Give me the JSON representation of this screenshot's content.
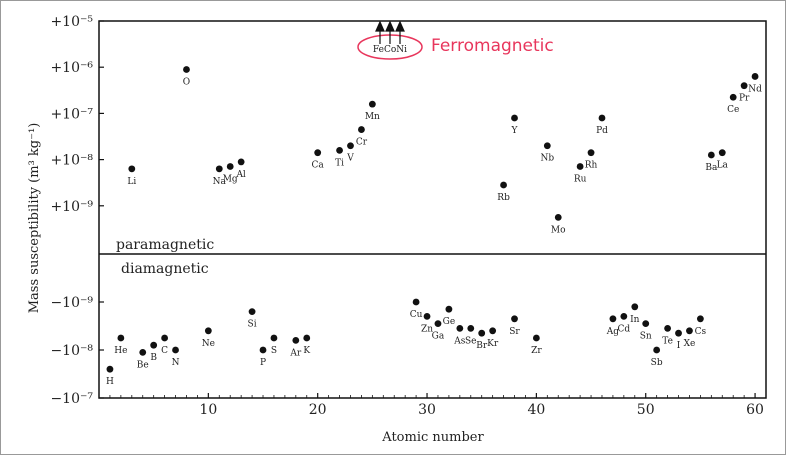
{
  "chart_data": {
    "type": "scatter",
    "xlabel": "Atomic number",
    "ylabel": "Mass susceptibility (m³ kg⁻¹)",
    "x_ticks": [
      10,
      20,
      30,
      40,
      50,
      60
    ],
    "xlim": [
      0,
      61
    ],
    "scale": "log (magnitude)",
    "grid": false,
    "colors": {
      "marker": "#111111",
      "annotation": "#e8365c"
    },
    "annotation": {
      "text": "Ferromagnetic",
      "elements": "FeCoNi"
    },
    "paramagnetic": {
      "label": "paramagnetic",
      "ylim_exp": [
        -9.8,
        -5
      ],
      "y_ticks": [
        "+10⁻⁵",
        "+10⁻⁶",
        "+10⁻⁷",
        "+10⁻⁸",
        "+10⁻⁹"
      ],
      "y_tick_exp": [
        -5,
        -6,
        -7,
        -8,
        -9
      ],
      "points": [
        {
          "z": 3,
          "el": "Li",
          "exp": -8.2
        },
        {
          "z": 8,
          "el": "O",
          "exp": -6.05
        },
        {
          "z": 11,
          "el": "Na",
          "exp": -8.2
        },
        {
          "z": 12,
          "el": "Mg",
          "exp": -8.15
        },
        {
          "z": 13,
          "el": "Al",
          "exp": -8.05
        },
        {
          "z": 20,
          "el": "Ca",
          "exp": -7.85
        },
        {
          "z": 22,
          "el": "Ti",
          "exp": -7.8
        },
        {
          "z": 23,
          "el": "V",
          "exp": -7.7
        },
        {
          "z": 24,
          "el": "Cr",
          "exp": -7.35
        },
        {
          "z": 25,
          "el": "Mn",
          "exp": -6.8
        },
        {
          "z": 37,
          "el": "Rb",
          "exp": -8.55
        },
        {
          "z": 38,
          "el": "Y",
          "exp": -7.1
        },
        {
          "z": 41,
          "el": "Nb",
          "exp": -7.7
        },
        {
          "z": 42,
          "el": "Mo",
          "exp": -9.25
        },
        {
          "z": 44,
          "el": "Ru",
          "exp": -8.15
        },
        {
          "z": 45,
          "el": "Rh",
          "exp": -7.85
        },
        {
          "z": 46,
          "el": "Pd",
          "exp": -7.1
        },
        {
          "z": 56,
          "el": "Ba",
          "exp": -7.9
        },
        {
          "z": 57,
          "el": "La",
          "exp": -7.85
        },
        {
          "z": 58,
          "el": "Ce",
          "exp": -6.65
        },
        {
          "z": 59,
          "el": "Pr",
          "exp": -6.4
        },
        {
          "z": 60,
          "el": "Nd",
          "exp": -6.2
        }
      ]
    },
    "diamagnetic": {
      "label": "diamagnetic",
      "ylim_exp": [
        -8.3,
        -10.9
      ],
      "y_ticks": [
        "−10⁻⁹",
        "−10⁻⁸",
        "−10⁻⁷"
      ],
      "y_tick_exp": [
        -9,
        -8,
        -7
      ],
      "points": [
        {
          "z": 1,
          "el": "H",
          "exp": -7.6
        },
        {
          "z": 2,
          "el": "He",
          "exp": -8.25
        },
        {
          "z": 4,
          "el": "Be",
          "exp": -7.95
        },
        {
          "z": 5,
          "el": "B",
          "exp": -8.1
        },
        {
          "z": 6,
          "el": "C",
          "exp": -8.25
        },
        {
          "z": 7,
          "el": "N",
          "exp": -8.0
        },
        {
          "z": 10,
          "el": "Ne",
          "exp": -8.4
        },
        {
          "z": 14,
          "el": "Si",
          "exp": -8.8
        },
        {
          "z": 15,
          "el": "P",
          "exp": -8.0
        },
        {
          "z": 16,
          "el": "S",
          "exp": -8.25
        },
        {
          "z": 18,
          "el": "Ar",
          "exp": -8.2
        },
        {
          "z": 19,
          "el": "K",
          "exp": -8.25
        },
        {
          "z": 29,
          "el": "Cu",
          "exp": -9.0
        },
        {
          "z": 30,
          "el": "Zn",
          "exp": -8.7
        },
        {
          "z": 31,
          "el": "Ga",
          "exp": -8.55
        },
        {
          "z": 32,
          "el": "Ge",
          "exp": -8.85
        },
        {
          "z": 33,
          "el": "As",
          "exp": -8.45
        },
        {
          "z": 34,
          "el": "Se",
          "exp": -8.45
        },
        {
          "z": 35,
          "el": "Br",
          "exp": -8.35
        },
        {
          "z": 36,
          "el": "Kr",
          "exp": -8.4
        },
        {
          "z": 38,
          "el": "Sr",
          "exp": -8.65
        },
        {
          "z": 40,
          "el": "Zr",
          "exp": -8.25
        },
        {
          "z": 47,
          "el": "Ag",
          "exp": -8.65
        },
        {
          "z": 48,
          "el": "Cd",
          "exp": -8.7
        },
        {
          "z": 49,
          "el": "In",
          "exp": -8.9
        },
        {
          "z": 50,
          "el": "Sn",
          "exp": -8.55
        },
        {
          "z": 51,
          "el": "Sb",
          "exp": -8.0
        },
        {
          "z": 52,
          "el": "Te",
          "exp": -8.45
        },
        {
          "z": 53,
          "el": "I",
          "exp": -8.35
        },
        {
          "z": 54,
          "el": "Xe",
          "exp": -8.4
        },
        {
          "z": 55,
          "el": "Cs",
          "exp": -8.65
        }
      ]
    }
  }
}
